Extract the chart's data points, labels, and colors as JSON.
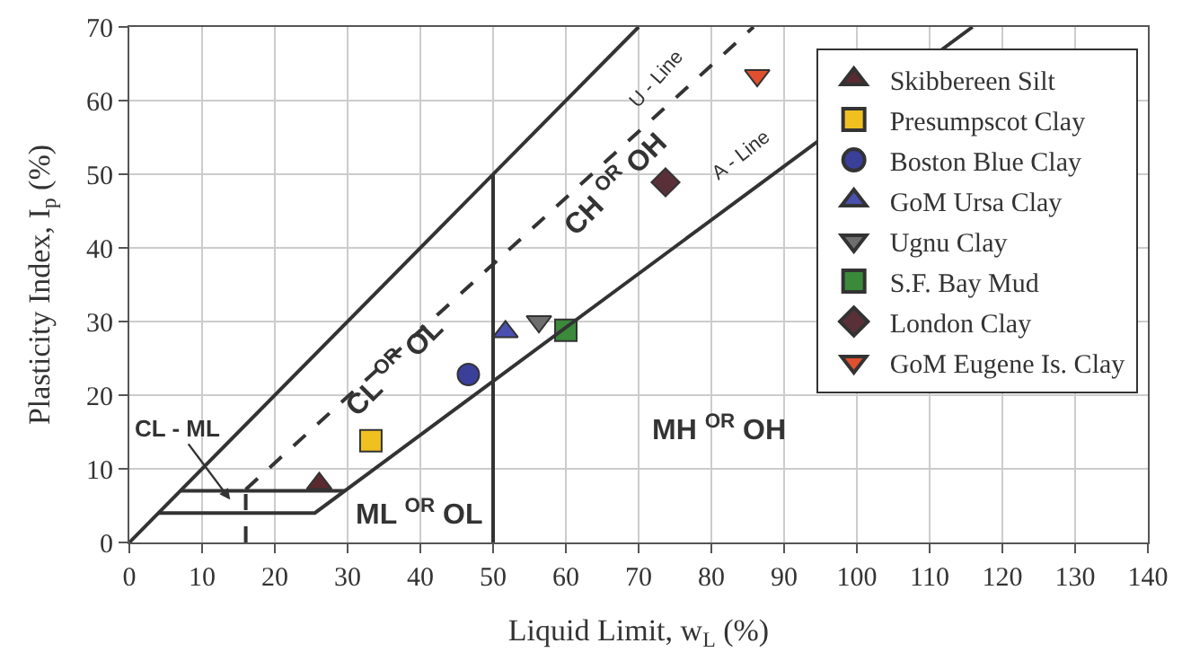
{
  "chart_data": {
    "type": "scatter",
    "xlabel": "Liquid Limit, w$_{L}$ (%)",
    "ylabel": "Plasticity Index, I$_{p}$ (%)",
    "xlim": [
      0,
      140
    ],
    "xticks": [
      0,
      10,
      20,
      30,
      40,
      50,
      60,
      70,
      80,
      90,
      100,
      110,
      120,
      130,
      140
    ],
    "ylim": [
      0,
      70
    ],
    "yticks": [
      0,
      10,
      20,
      30,
      40,
      50,
      60,
      70
    ],
    "grid": true,
    "legend": "right",
    "series": [
      {
        "name": "Skibbereen Silt",
        "color": "#5a2a30",
        "marker": "triangle",
        "x": [
          26.1
        ],
        "values": [
          8.0
        ]
      },
      {
        "name": "Presumpscot Clay",
        "color": "#f0c020",
        "marker": "square",
        "x": [
          33.2
        ],
        "values": [
          13.8
        ]
      },
      {
        "name": "Boston Blue Clay",
        "color": "#3a3f9a",
        "marker": "circle",
        "x": [
          46.6
        ],
        "values": [
          22.8
        ]
      },
      {
        "name": "GoM Ursa Clay",
        "color": "#4a50b0",
        "marker": "triangle",
        "x": [
          51.7
        ],
        "values": [
          28.6
        ]
      },
      {
        "name": "Ugnu Clay",
        "color": "#6e6e6e",
        "marker": "triangle-down",
        "x": [
          56.3
        ],
        "values": [
          30.0
        ]
      },
      {
        "name": "S.F. Bay Mud",
        "color": "#3a8a3a",
        "marker": "square",
        "x": [
          60.0
        ],
        "values": [
          28.8
        ]
      },
      {
        "name": "London Clay",
        "color": "#5a3038",
        "marker": "diamond",
        "x": [
          73.7
        ],
        "values": [
          48.9
        ]
      },
      {
        "name": "GoM Eugene Is. Clay",
        "color": "#e05030",
        "marker": "triangle-down",
        "x": [
          86.3
        ],
        "values": [
          63.4
        ]
      },
      {
        "type": "line",
        "color": "#333333",
        "marker": "none",
        "line_style": "solid",
        "x": [
          0,
          70
        ],
        "values": [
          0,
          70
        ]
      },
      {
        "type": "line",
        "color": "#333333",
        "marker": "none",
        "line_style": "solid",
        "x": [
          50,
          50
        ],
        "values": [
          0,
          50
        ]
      },
      {
        "type": "line",
        "color": "#333333",
        "marker": "none",
        "line_style": "solid",
        "x": [
          4,
          25.5,
          115.9
        ],
        "values": [
          4,
          4,
          70
        ]
      },
      {
        "type": "line",
        "color": "#333333",
        "marker": "none",
        "line_style": "solid",
        "x": [
          7,
          29.6
        ],
        "values": [
          7,
          7
        ]
      },
      {
        "type": "line",
        "color": "#333333",
        "marker": "none",
        "line_style": "dashed",
        "x": [
          16,
          85.8
        ],
        "values": [
          7.2,
          70
        ]
      },
      {
        "type": "line",
        "color": "#333333",
        "marker": "none",
        "line_style": "dashed",
        "x": [
          16,
          16
        ],
        "values": [
          0,
          7
        ]
      }
    ],
    "annotations": [
      "U - Line",
      "A - Line",
      "CH $^{OR}$ OH",
      "CL $^{OR}$ OL",
      "CL - ML",
      "ML $^{OR}$ OL",
      "MH $^{OR}$ OH"
    ]
  }
}
